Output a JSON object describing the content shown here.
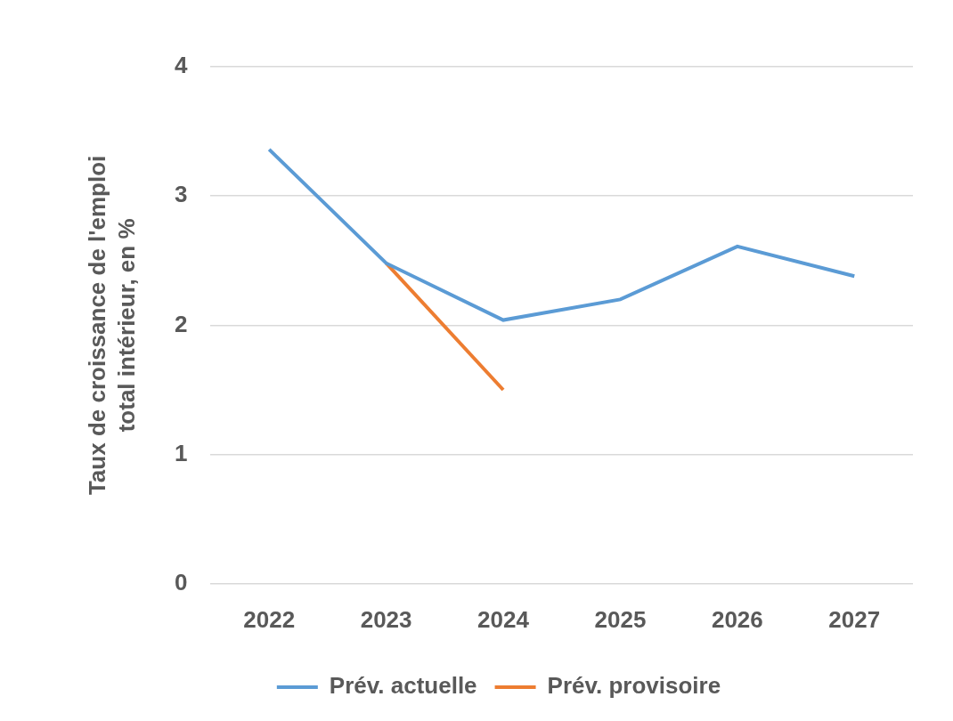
{
  "chart_data": {
    "type": "line",
    "y_label": [
      "Taux de croissance de l'emploi",
      "total intérieur, en %"
    ],
    "categories": [
      "2022",
      "2023",
      "2024",
      "2025",
      "2026",
      "2027"
    ],
    "series": [
      {
        "name": "Prév. actuelle",
        "color": "#5b9bd5",
        "values": [
          3.36,
          2.48,
          2.04,
          2.2,
          2.61,
          2.38
        ]
      },
      {
        "name": "Prév. provisoire",
        "color": "#ed7d31",
        "values": [
          null,
          2.48,
          1.5,
          null,
          null,
          null
        ]
      }
    ],
    "ylim": [
      0,
      4
    ],
    "yticks": [
      0,
      1,
      2,
      3,
      4
    ],
    "grid": true,
    "legend": "bottom"
  }
}
